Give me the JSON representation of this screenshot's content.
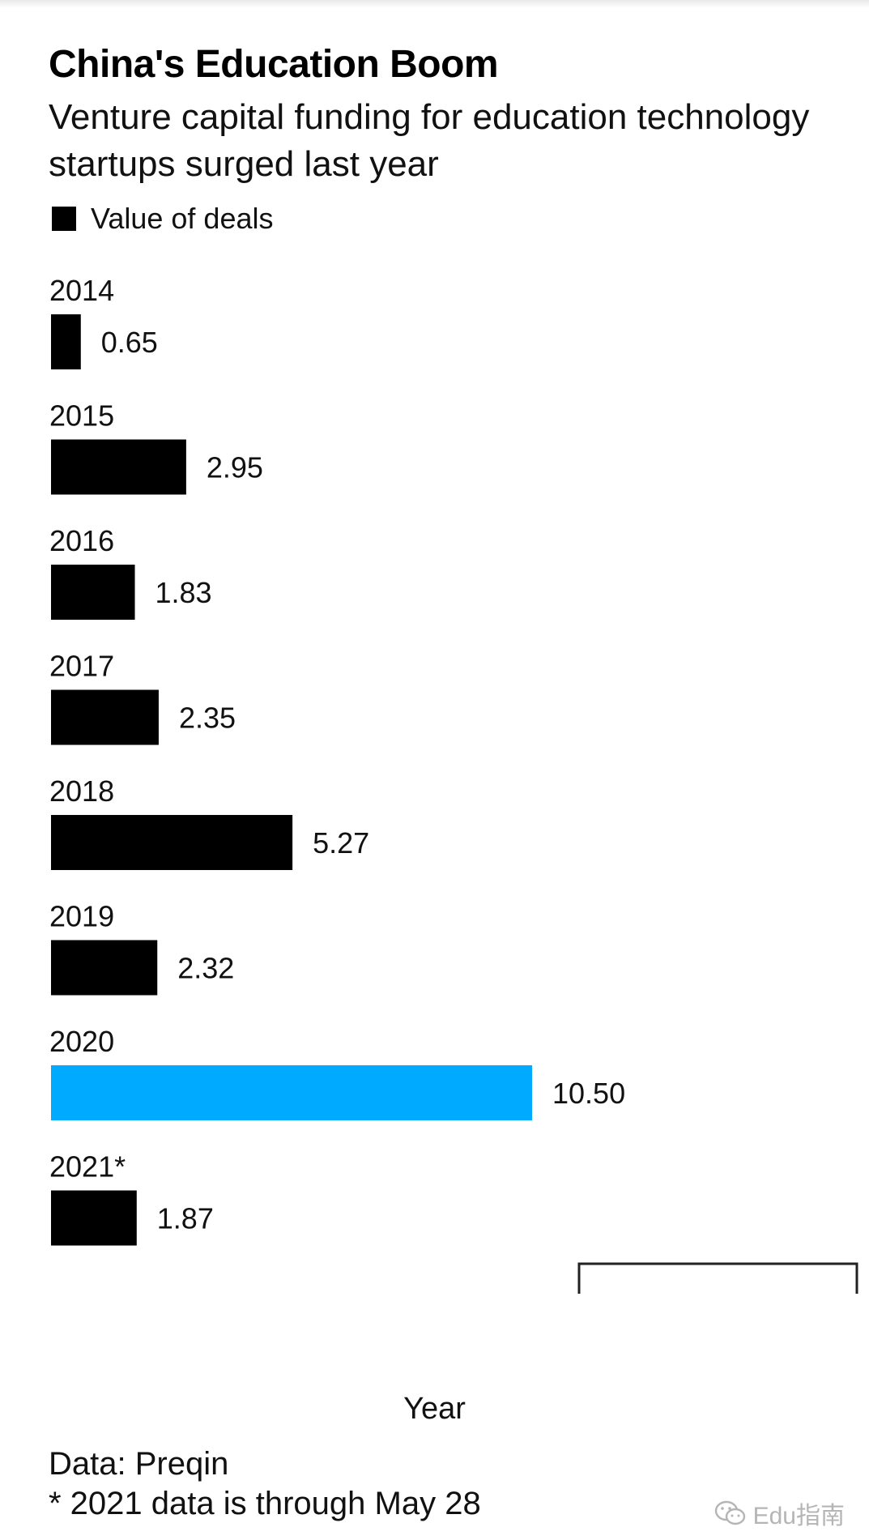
{
  "chart_data": {
    "type": "bar",
    "orientation": "horizontal",
    "title": "China's Education Boom",
    "subtitle": "Venture capital funding for education technology startups surged last year",
    "categories": [
      "2014",
      "2015",
      "2016",
      "2017",
      "2018",
      "2019",
      "2020",
      "2021*"
    ],
    "series": [
      {
        "name": "Value of deals",
        "values": [
          0.65,
          2.95,
          1.83,
          2.35,
          5.27,
          2.32,
          10.5,
          1.87
        ],
        "value_labels": [
          "0.65",
          "2.95",
          "1.83",
          "2.35",
          "5.27",
          "2.32",
          "10.50",
          "1.87"
        ]
      }
    ],
    "xlabel": "Year",
    "ylabel": "",
    "xlim": [
      0,
      10.5
    ],
    "grid": false,
    "legend": "top-left",
    "colors": {
      "default_bar": "#000000",
      "highlight_bar": "#00aaff",
      "highlight_category": "2020"
    }
  },
  "footer": {
    "source": "Data: Preqin",
    "note": "* 2021 data is through May 28"
  },
  "watermark": {
    "text": "Edu指南",
    "icon": "wechat-icon"
  }
}
